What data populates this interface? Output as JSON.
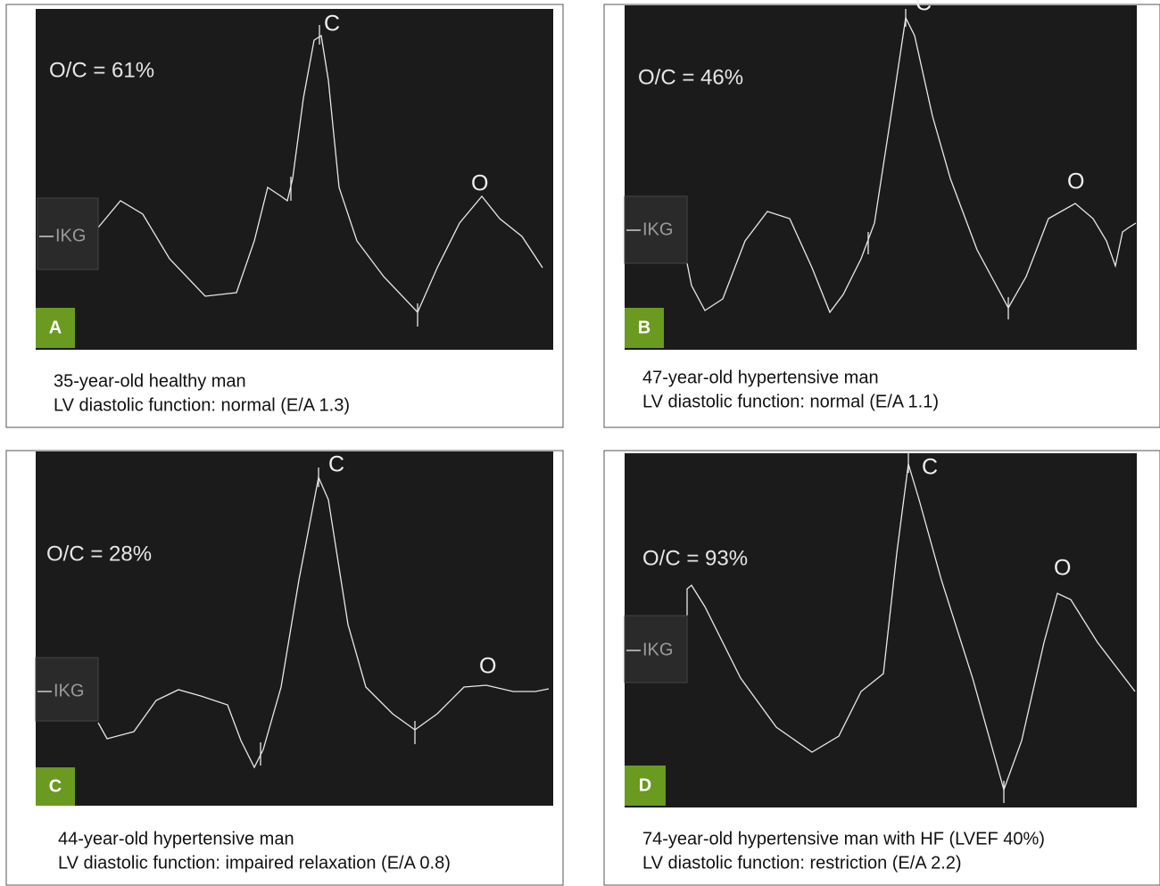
{
  "panels": [
    {
      "letter": "A",
      "ratio": "O/C = 61%",
      "c_label": "C",
      "o_label": "O",
      "ikg": "IKG",
      "caption": [
        "35-year-old healthy man",
        "LV diastolic function: normal (E/A 1.3)"
      ]
    },
    {
      "letter": "B",
      "ratio": "O/C = 46%",
      "c_label": "C",
      "o_label": "O",
      "ikg": "IKG",
      "caption": [
        "47-year-old hypertensive man",
        "LV diastolic function: normal (E/A 1.1)"
      ]
    },
    {
      "letter": "C",
      "ratio": "O/C = 28%",
      "c_label": "C",
      "o_label": "O",
      "ikg": "IKG",
      "caption": [
        "44-year-old hypertensive man",
        "LV diastolic function: impaired relaxation (E/A 0.8)"
      ]
    },
    {
      "letter": "D",
      "ratio": "O/C = 93%",
      "c_label": "C",
      "o_label": "O",
      "ikg": "IKG",
      "caption": [
        "74-year-old hypertensive man with HF (LVEF 40%)",
        "LV diastolic function: restriction (E/A 2.2)"
      ]
    }
  ]
}
